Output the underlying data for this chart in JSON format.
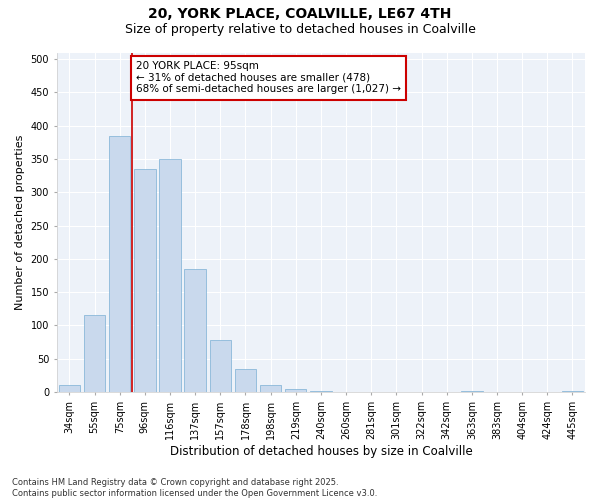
{
  "title1": "20, YORK PLACE, COALVILLE, LE67 4TH",
  "title2": "Size of property relative to detached houses in Coalville",
  "xlabel": "Distribution of detached houses by size in Coalville",
  "ylabel": "Number of detached properties",
  "categories": [
    "34sqm",
    "55sqm",
    "75sqm",
    "96sqm",
    "116sqm",
    "137sqm",
    "157sqm",
    "178sqm",
    "198sqm",
    "219sqm",
    "240sqm",
    "260sqm",
    "281sqm",
    "301sqm",
    "322sqm",
    "342sqm",
    "363sqm",
    "383sqm",
    "404sqm",
    "424sqm",
    "445sqm"
  ],
  "values": [
    10,
    115,
    385,
    335,
    350,
    185,
    78,
    35,
    10,
    5,
    2,
    0,
    0,
    0,
    0,
    0,
    1,
    0,
    0,
    0,
    1
  ],
  "bar_color": "#c9d9ed",
  "bar_edge_color": "#7bafd4",
  "vline_color": "#cc0000",
  "annotation_text": "20 YORK PLACE: 95sqm\n← 31% of detached houses are smaller (478)\n68% of semi-detached houses are larger (1,027) →",
  "annotation_box_edgecolor": "#cc0000",
  "ylim": [
    0,
    510
  ],
  "yticks": [
    0,
    50,
    100,
    150,
    200,
    250,
    300,
    350,
    400,
    450,
    500
  ],
  "bg_color": "#edf2f9",
  "footer1": "Contains HM Land Registry data © Crown copyright and database right 2025.",
  "footer2": "Contains public sector information licensed under the Open Government Licence v3.0.",
  "title1_fontsize": 10,
  "title2_fontsize": 9,
  "xlabel_fontsize": 8.5,
  "ylabel_fontsize": 8,
  "tick_fontsize": 7,
  "annotation_fontsize": 7.5,
  "footer_fontsize": 6
}
